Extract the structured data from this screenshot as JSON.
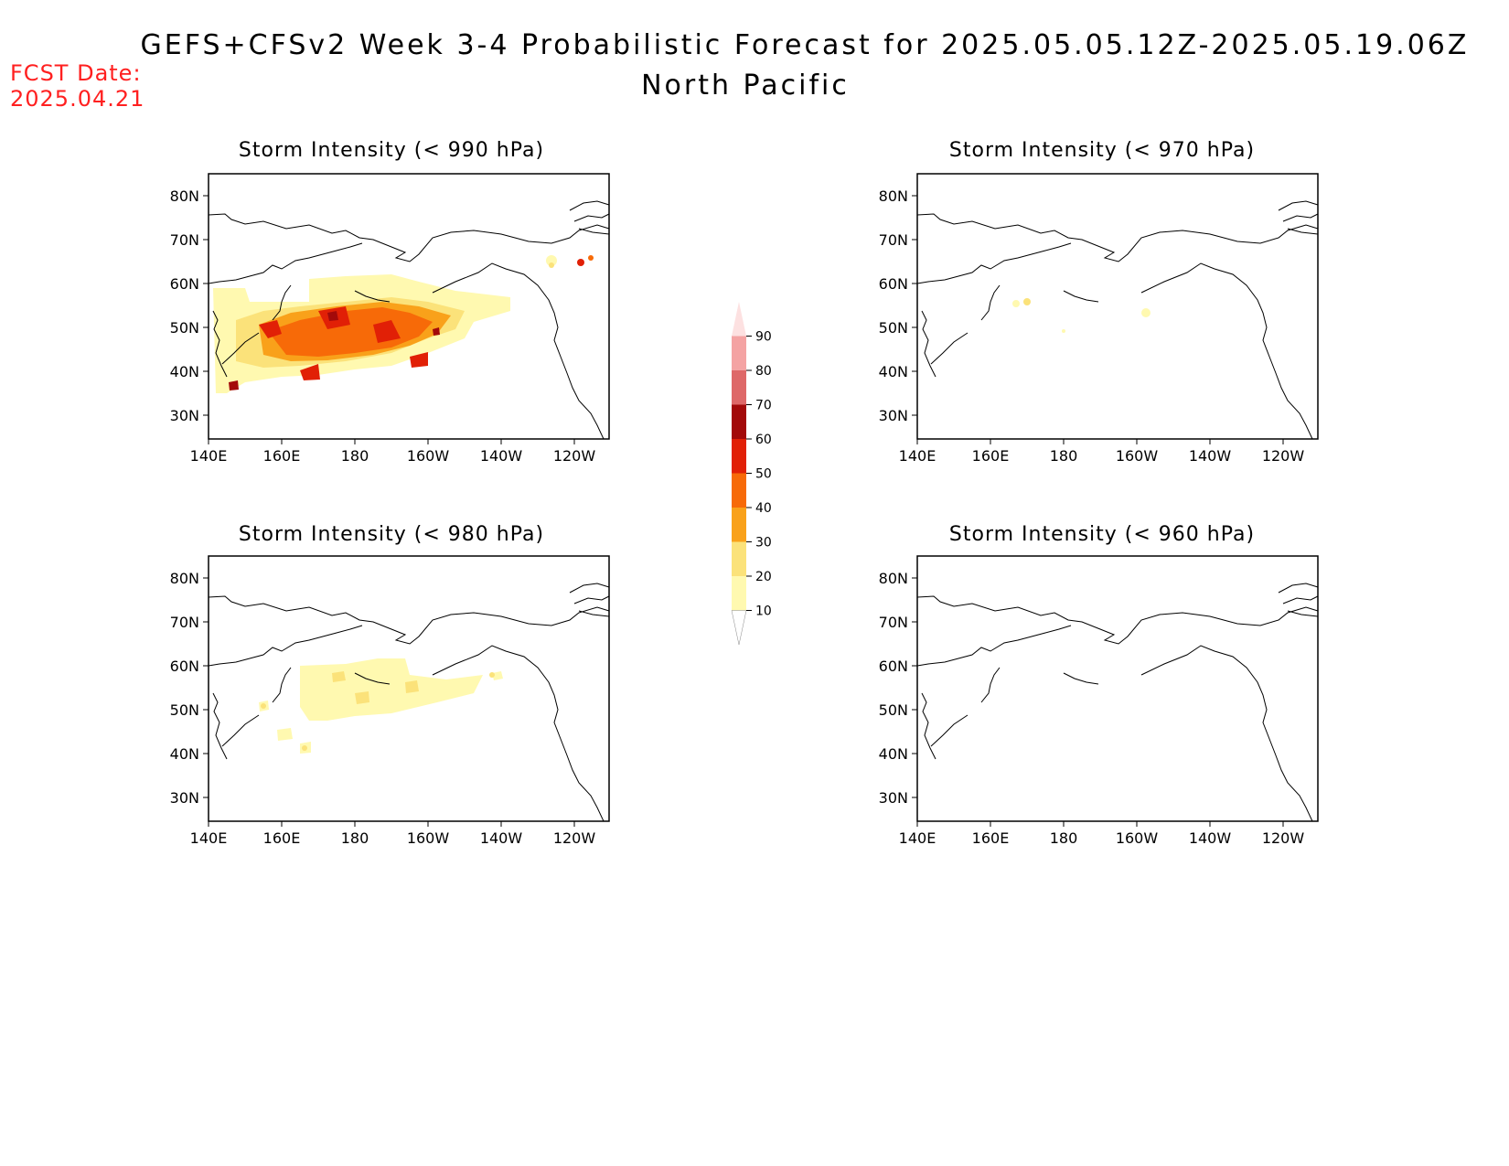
{
  "header": {
    "fcst_label": "FCST Date:",
    "fcst_date": "2025.04.21",
    "title": "GEFS+CFSv2 Week 3-4 Probabilistic Forecast for 2025.05.05.12Z-2025.05.19.06Z",
    "region": "North Pacific"
  },
  "axes": {
    "lon_labels": [
      "140E",
      "160E",
      "180",
      "160W",
      "140W",
      "120W"
    ],
    "lat_labels": [
      "80N",
      "70N",
      "60N",
      "50N",
      "40N",
      "30N"
    ]
  },
  "panels": [
    {
      "id": "p990",
      "title": "Storm Intensity (< 990 hPa)"
    },
    {
      "id": "p970",
      "title": "Storm Intensity (< 970 hPa)"
    },
    {
      "id": "p980",
      "title": "Storm Intensity (< 980 hPa)"
    },
    {
      "id": "p960",
      "title": "Storm Intensity (< 960 hPa)"
    }
  ],
  "colorbar": {
    "levels": [
      10,
      20,
      30,
      40,
      50,
      60,
      70,
      80,
      90
    ],
    "labels": [
      "10",
      "20",
      "30",
      "40",
      "50",
      "60",
      "70",
      "80",
      "90"
    ],
    "colors": [
      "#fff9b0",
      "#fbe27a",
      "#f9a11a",
      "#f76a08",
      "#e12006",
      "#a30a0a",
      "#de6868",
      "#f4a3a3",
      "#fde1e1"
    ]
  },
  "colors": {
    "fcst_text": "#ff2020",
    "coast": "#000000"
  }
}
